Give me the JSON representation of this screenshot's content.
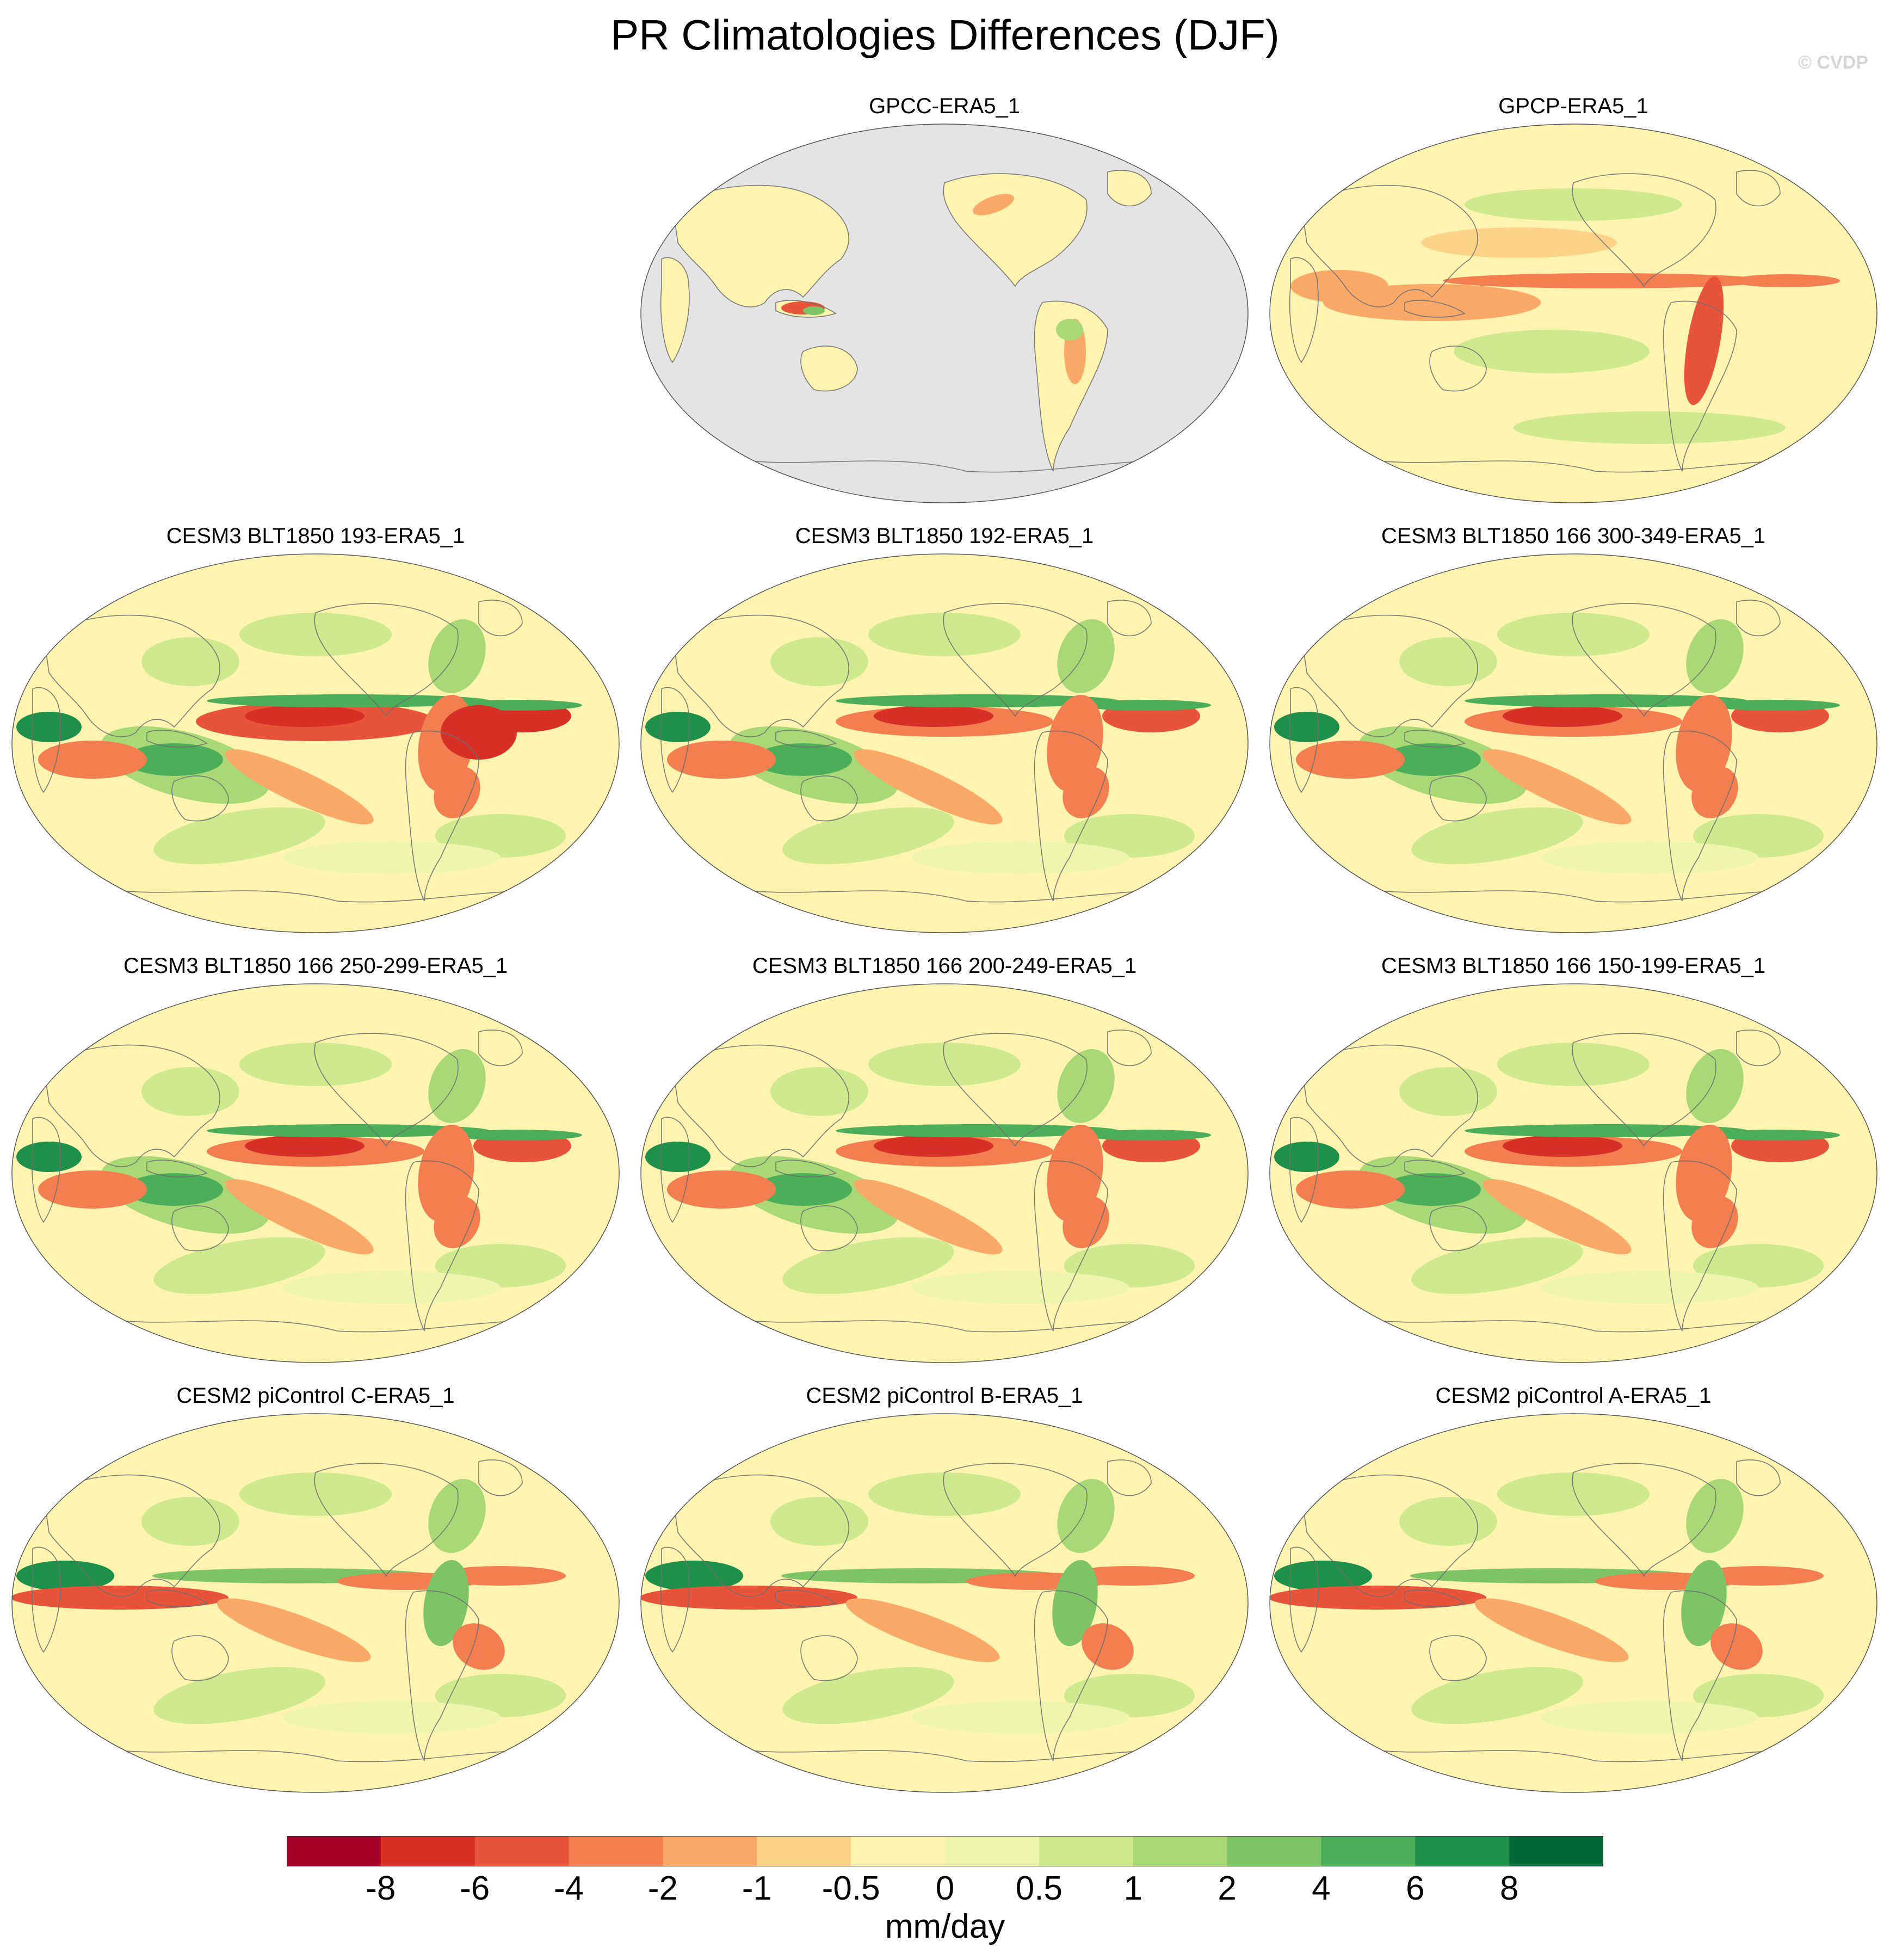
{
  "title": "PR Climatologies Differences (DJF)",
  "watermark": "© CVDP",
  "panels": [
    {
      "title": "GPCC-ERA5_1",
      "style": "land"
    },
    {
      "title": "GPCP-ERA5_1",
      "style": "obs"
    },
    {
      "title": "CESM3 BLT1850 193-ERA5_1",
      "style": "model"
    },
    {
      "title": "CESM3 BLT1850 192-ERA5_1",
      "style": "model"
    },
    {
      "title": "CESM3 BLT1850 166 300-349-ERA5_1",
      "style": "model"
    },
    {
      "title": "CESM3 BLT1850 166 250-299-ERA5_1",
      "style": "model"
    },
    {
      "title": "CESM3 BLT1850 166 200-249-ERA5_1",
      "style": "model"
    },
    {
      "title": "CESM3 BLT1850 166 150-199-ERA5_1",
      "style": "model"
    },
    {
      "title": "CESM2 piControl C-ERA5_1",
      "style": "cesm2"
    },
    {
      "title": "CESM2 piControl B-ERA5_1",
      "style": "cesm2"
    },
    {
      "title": "CESM2 piControl A-ERA5_1",
      "style": "cesm2"
    }
  ],
  "colorbar": {
    "units": "mm/day",
    "levels": [
      "-8",
      "-6",
      "-4",
      "-2",
      "-1",
      "-0.5",
      "0",
      "0.5",
      "1",
      "2",
      "4",
      "6",
      "8"
    ],
    "colors": [
      "#a50026",
      "#d73027",
      "#e8543a",
      "#f37e4f",
      "#fba968",
      "#fdd38a",
      "#fef4b0",
      "#eef6ad",
      "#cfe98e",
      "#a9d977",
      "#7cc466",
      "#4cae58",
      "#1f904a",
      "#006837"
    ]
  },
  "land_color": "#e4e4e4"
}
